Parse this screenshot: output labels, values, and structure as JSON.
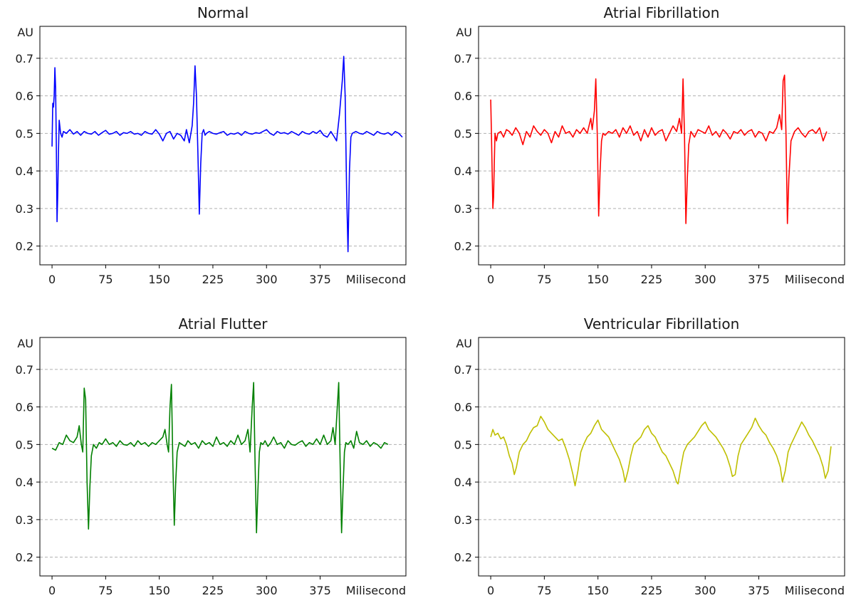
{
  "chart_data": [
    {
      "type": "line",
      "title": "Normal",
      "xlabel": "Milisecond",
      "ylabel": "AU",
      "xlim": [
        -17,
        495
      ],
      "ylim": [
        0.15,
        0.785
      ],
      "xticks": [
        0,
        75,
        150,
        225,
        300,
        375
      ],
      "yticks": [
        0.2,
        0.3,
        0.4,
        0.5,
        0.6,
        0.7
      ],
      "grid": "y-dashed",
      "color": "#0000ff",
      "series": [
        {
          "x": [
            0,
            1,
            2,
            3,
            4,
            5,
            6,
            7,
            8,
            9,
            10,
            12,
            14,
            16,
            20,
            25,
            30,
            35,
            40,
            45,
            50,
            55,
            60,
            65,
            70,
            75,
            80,
            85,
            90,
            95,
            100,
            105,
            110,
            115,
            120,
            125,
            130,
            135,
            140,
            145,
            150,
            155,
            160,
            165,
            170,
            175,
            180,
            185,
            188,
            192,
            196,
            198,
            200,
            202,
            204,
            206,
            208,
            210,
            212,
            214,
            216,
            220,
            225,
            230,
            235,
            240,
            245,
            250,
            255,
            260,
            265,
            270,
            275,
            280,
            285,
            290,
            295,
            300,
            305,
            310,
            315,
            320,
            325,
            330,
            335,
            340,
            345,
            350,
            355,
            360,
            365,
            370,
            375,
            380,
            385,
            390,
            395,
            398,
            402,
            406,
            408,
            410,
            412,
            414,
            416,
            418,
            420,
            425,
            430,
            435,
            440,
            445,
            450,
            455,
            460,
            465,
            470,
            475,
            480,
            485,
            490
          ],
          "y": [
            0.465,
            0.58,
            0.57,
            0.6,
            0.675,
            0.62,
            0.47,
            0.265,
            0.34,
            0.45,
            0.535,
            0.5,
            0.49,
            0.505,
            0.5,
            0.51,
            0.498,
            0.505,
            0.495,
            0.505,
            0.5,
            0.498,
            0.505,
            0.495,
            0.502,
            0.508,
            0.498,
            0.5,
            0.505,
            0.495,
            0.502,
            0.5,
            0.505,
            0.498,
            0.5,
            0.495,
            0.505,
            0.5,
            0.498,
            0.51,
            0.498,
            0.48,
            0.5,
            0.505,
            0.485,
            0.5,
            0.495,
            0.48,
            0.51,
            0.475,
            0.52,
            0.58,
            0.68,
            0.6,
            0.45,
            0.285,
            0.42,
            0.5,
            0.51,
            0.495,
            0.5,
            0.505,
            0.5,
            0.498,
            0.502,
            0.505,
            0.495,
            0.5,
            0.498,
            0.502,
            0.495,
            0.505,
            0.5,
            0.498,
            0.502,
            0.5,
            0.505,
            0.51,
            0.5,
            0.495,
            0.505,
            0.5,
            0.502,
            0.498,
            0.505,
            0.5,
            0.495,
            0.505,
            0.5,
            0.498,
            0.505,
            0.5,
            0.508,
            0.495,
            0.49,
            0.505,
            0.49,
            0.48,
            0.55,
            0.64,
            0.705,
            0.6,
            0.35,
            0.185,
            0.4,
            0.49,
            0.5,
            0.505,
            0.5,
            0.498,
            0.505,
            0.5,
            0.495,
            0.505,
            0.5,
            0.498,
            0.502,
            0.495,
            0.505,
            0.5,
            0.49
          ]
        }
      ]
    },
    {
      "type": "line",
      "title": "Atrial Fibrillation",
      "xlabel": "Milisecond",
      "ylabel": "AU",
      "xlim": [
        -17,
        495
      ],
      "ylim": [
        0.15,
        0.785
      ],
      "xticks": [
        0,
        75,
        150,
        225,
        300,
        375
      ],
      "yticks": [
        0.2,
        0.3,
        0.4,
        0.5,
        0.6,
        0.7
      ],
      "grid": "y-dashed",
      "color": "#ff0000",
      "series": [
        {
          "x": [
            0,
            1,
            2,
            3,
            4,
            5,
            6,
            8,
            10,
            14,
            18,
            22,
            26,
            30,
            35,
            40,
            45,
            50,
            55,
            60,
            65,
            70,
            75,
            80,
            85,
            90,
            95,
            100,
            105,
            110,
            115,
            120,
            125,
            130,
            135,
            140,
            142,
            145,
            147,
            149,
            151,
            153,
            155,
            157,
            160,
            165,
            170,
            175,
            180,
            185,
            190,
            195,
            200,
            205,
            210,
            215,
            220,
            225,
            230,
            235,
            240,
            245,
            250,
            255,
            260,
            264,
            267,
            269,
            271,
            273,
            275,
            277,
            280,
            285,
            290,
            295,
            300,
            305,
            310,
            315,
            320,
            325,
            330,
            335,
            340,
            345,
            350,
            355,
            360,
            365,
            370,
            375,
            380,
            385,
            390,
            395,
            400,
            404,
            407,
            409,
            411,
            413,
            415,
            417,
            420,
            425,
            430,
            435,
            440,
            445,
            450,
            455,
            460,
            465,
            470
          ],
          "y": [
            0.59,
            0.5,
            0.4,
            0.3,
            0.33,
            0.42,
            0.5,
            0.48,
            0.5,
            0.505,
            0.49,
            0.51,
            0.505,
            0.495,
            0.515,
            0.5,
            0.47,
            0.505,
            0.49,
            0.52,
            0.505,
            0.495,
            0.51,
            0.5,
            0.475,
            0.505,
            0.49,
            0.52,
            0.5,
            0.505,
            0.49,
            0.51,
            0.5,
            0.515,
            0.5,
            0.54,
            0.51,
            0.56,
            0.645,
            0.5,
            0.28,
            0.4,
            0.48,
            0.5,
            0.495,
            0.505,
            0.5,
            0.51,
            0.49,
            0.515,
            0.5,
            0.52,
            0.495,
            0.505,
            0.48,
            0.51,
            0.49,
            0.515,
            0.495,
            0.505,
            0.51,
            0.48,
            0.5,
            0.52,
            0.505,
            0.54,
            0.5,
            0.645,
            0.5,
            0.26,
            0.38,
            0.47,
            0.505,
            0.49,
            0.51,
            0.505,
            0.5,
            0.52,
            0.495,
            0.505,
            0.49,
            0.51,
            0.5,
            0.485,
            0.505,
            0.5,
            0.51,
            0.495,
            0.505,
            0.51,
            0.49,
            0.505,
            0.5,
            0.48,
            0.505,
            0.5,
            0.515,
            0.55,
            0.51,
            0.64,
            0.655,
            0.5,
            0.26,
            0.38,
            0.48,
            0.505,
            0.515,
            0.5,
            0.49,
            0.505,
            0.51,
            0.5,
            0.515,
            0.48,
            0.505
          ]
        }
      ]
    },
    {
      "type": "line",
      "title": "Atrial Flutter",
      "xlabel": "Milisecond",
      "ylabel": "AU",
      "xlim": [
        -17,
        495
      ],
      "ylim": [
        0.15,
        0.785
      ],
      "xticks": [
        0,
        75,
        150,
        225,
        300,
        375
      ],
      "yticks": [
        0.2,
        0.3,
        0.4,
        0.5,
        0.6,
        0.7
      ],
      "grid": "y-dashed",
      "color": "#008000",
      "series": [
        {
          "x": [
            0,
            5,
            10,
            15,
            20,
            25,
            30,
            35,
            38,
            41,
            43,
            45,
            47,
            49,
            51,
            53,
            55,
            58,
            62,
            66,
            70,
            75,
            80,
            85,
            90,
            95,
            100,
            105,
            110,
            115,
            120,
            125,
            130,
            135,
            140,
            145,
            150,
            155,
            158,
            161,
            163,
            165,
            167,
            169,
            171,
            173,
            175,
            178,
            182,
            186,
            190,
            195,
            200,
            205,
            210,
            215,
            220,
            225,
            230,
            235,
            240,
            245,
            250,
            255,
            260,
            265,
            270,
            274,
            277,
            280,
            282,
            284,
            286,
            288,
            290,
            292,
            295,
            298,
            302,
            306,
            310,
            315,
            320,
            325,
            330,
            335,
            340,
            345,
            350,
            355,
            360,
            365,
            370,
            375,
            380,
            385,
            390,
            393,
            396,
            399,
            401,
            403,
            405,
            407,
            409,
            411,
            414,
            418,
            422,
            426,
            430,
            435,
            440,
            445,
            450,
            455,
            460,
            465,
            470
          ],
          "y": [
            0.49,
            0.485,
            0.505,
            0.5,
            0.525,
            0.51,
            0.505,
            0.52,
            0.55,
            0.5,
            0.48,
            0.65,
            0.62,
            0.4,
            0.275,
            0.39,
            0.47,
            0.5,
            0.49,
            0.505,
            0.5,
            0.515,
            0.5,
            0.505,
            0.495,
            0.51,
            0.5,
            0.498,
            0.505,
            0.495,
            0.51,
            0.5,
            0.505,
            0.495,
            0.505,
            0.5,
            0.51,
            0.52,
            0.54,
            0.5,
            0.48,
            0.6,
            0.66,
            0.45,
            0.285,
            0.4,
            0.48,
            0.505,
            0.5,
            0.495,
            0.51,
            0.5,
            0.505,
            0.49,
            0.51,
            0.5,
            0.505,
            0.495,
            0.52,
            0.5,
            0.505,
            0.495,
            0.51,
            0.5,
            0.525,
            0.5,
            0.51,
            0.54,
            0.48,
            0.6,
            0.665,
            0.45,
            0.265,
            0.38,
            0.48,
            0.505,
            0.5,
            0.51,
            0.495,
            0.505,
            0.52,
            0.5,
            0.505,
            0.49,
            0.51,
            0.5,
            0.498,
            0.505,
            0.51,
            0.495,
            0.505,
            0.5,
            0.515,
            0.5,
            0.525,
            0.5,
            0.51,
            0.545,
            0.5,
            0.6,
            0.665,
            0.45,
            0.265,
            0.38,
            0.48,
            0.505,
            0.5,
            0.51,
            0.49,
            0.535,
            0.505,
            0.5,
            0.51,
            0.495,
            0.505,
            0.5,
            0.49,
            0.505,
            0.5
          ]
        }
      ]
    },
    {
      "type": "line",
      "title": "Ventricular Fibrillation",
      "xlabel": "Milisecond",
      "ylabel": "AU",
      "xlim": [
        -17,
        495
      ],
      "ylim": [
        0.15,
        0.785
      ],
      "xticks": [
        0,
        75,
        150,
        225,
        300,
        375
      ],
      "yticks": [
        0.2,
        0.3,
        0.4,
        0.5,
        0.6,
        0.7
      ],
      "grid": "y-dashed",
      "color": "#bfbf00",
      "series": [
        {
          "x": [
            0,
            3,
            6,
            10,
            14,
            18,
            22,
            26,
            30,
            33,
            36,
            40,
            45,
            50,
            55,
            60,
            65,
            70,
            75,
            80,
            85,
            90,
            95,
            100,
            105,
            110,
            115,
            118,
            122,
            126,
            130,
            135,
            140,
            145,
            150,
            155,
            160,
            165,
            170,
            175,
            180,
            185,
            188,
            192,
            196,
            200,
            205,
            210,
            215,
            220,
            225,
            230,
            235,
            240,
            245,
            250,
            255,
            260,
            262,
            266,
            270,
            275,
            280,
            285,
            290,
            295,
            300,
            305,
            310,
            315,
            320,
            325,
            330,
            335,
            338,
            342,
            346,
            350,
            355,
            360,
            365,
            370,
            375,
            380,
            385,
            390,
            395,
            400,
            405,
            408,
            412,
            416,
            420,
            425,
            430,
            435,
            440,
            445,
            450,
            455,
            460,
            465,
            468,
            472,
            476
          ],
          "y": [
            0.52,
            0.54,
            0.525,
            0.53,
            0.515,
            0.52,
            0.5,
            0.47,
            0.45,
            0.42,
            0.44,
            0.48,
            0.5,
            0.51,
            0.53,
            0.545,
            0.55,
            0.575,
            0.56,
            0.54,
            0.53,
            0.52,
            0.51,
            0.515,
            0.49,
            0.46,
            0.42,
            0.39,
            0.43,
            0.48,
            0.5,
            0.52,
            0.53,
            0.55,
            0.565,
            0.54,
            0.53,
            0.52,
            0.5,
            0.48,
            0.46,
            0.43,
            0.4,
            0.43,
            0.47,
            0.5,
            0.51,
            0.52,
            0.54,
            0.55,
            0.53,
            0.52,
            0.5,
            0.48,
            0.47,
            0.45,
            0.43,
            0.4,
            0.395,
            0.44,
            0.48,
            0.5,
            0.51,
            0.52,
            0.535,
            0.55,
            0.56,
            0.54,
            0.53,
            0.52,
            0.505,
            0.49,
            0.47,
            0.44,
            0.415,
            0.42,
            0.47,
            0.5,
            0.515,
            0.53,
            0.545,
            0.57,
            0.55,
            0.535,
            0.525,
            0.505,
            0.49,
            0.47,
            0.44,
            0.4,
            0.43,
            0.48,
            0.5,
            0.52,
            0.54,
            0.56,
            0.545,
            0.525,
            0.51,
            0.49,
            0.47,
            0.44,
            0.41,
            0.43,
            0.495
          ]
        }
      ]
    }
  ]
}
